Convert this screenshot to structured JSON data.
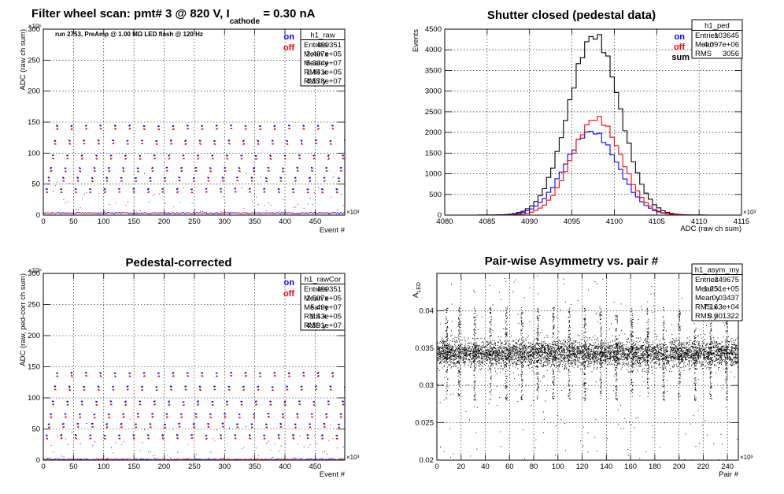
{
  "chart_data": [
    {
      "id": "raw",
      "type": "scatter",
      "title_parts": {
        "pre": "Filter wheel scan: pmt#   3 @   820 V, I",
        "sub": "cathode",
        "post": "     = 0.30 nA"
      },
      "subtitle": "run 2753, PreAmp @ 1.00 MΩ  LED flash @  120 Hz",
      "xlabel": "Event #",
      "ylabel": "ADC (raw ch sum)",
      "x_exponent": "×10³",
      "y_exponent": "×10⁶",
      "xlim": [
        0,
        499
      ],
      "ylim": [
        0,
        300
      ],
      "xticks": [
        0,
        50,
        100,
        150,
        200,
        250,
        300,
        350,
        400,
        450
      ],
      "yticks": [
        0,
        50,
        100,
        150,
        200,
        250,
        300
      ],
      "grid": true,
      "legend_position": "top-right",
      "series": [
        {
          "name": "on",
          "color": "#0000ff"
        },
        {
          "name": "off",
          "color": "#ff0000"
        }
      ],
      "cycle_period": 24,
      "step_levels": [
        4,
        40,
        58,
        74,
        94,
        118,
        142
      ],
      "stats": {
        "name": "h1_raw",
        "rows": [
          [
            "Entries",
            "499351"
          ],
          [
            "Mean x",
            "2.497e+05"
          ],
          [
            "Mean y",
            "5.334e+07"
          ],
          [
            "RMS x",
            "1.441e+05"
          ],
          [
            "RMS y",
            "4.578e+07"
          ]
        ]
      }
    },
    {
      "id": "ped",
      "type": "line",
      "title": "Shutter closed (pedestal data)",
      "xlabel": "ADC (raw ch sum)",
      "ylabel": "Events",
      "x_exponent": "×10³",
      "xlim": [
        4080,
        4115
      ],
      "ylim": [
        0,
        4500
      ],
      "xticks": [
        4080,
        4085,
        4090,
        4095,
        4100,
        4105,
        4110,
        4115
      ],
      "yticks": [
        0,
        500,
        1000,
        1500,
        2000,
        2500,
        3000,
        3500,
        4000,
        4500
      ],
      "grid": true,
      "legend_position": "top-right",
      "series": [
        {
          "name": "on",
          "color": "#0000ff",
          "mean": 4097.3,
          "sigma": 3.1,
          "peak": 2020
        },
        {
          "name": "off",
          "color": "#ff0000",
          "mean": 4097.9,
          "sigma": 2.9,
          "peak": 2340
        },
        {
          "name": "sum",
          "color": "#000000"
        }
      ],
      "stats": {
        "name": "h1_ped",
        "rows": [
          [
            "Entries",
            "103645"
          ],
          [
            "Mean",
            "4.097e+06"
          ],
          [
            "RMS",
            "3056"
          ]
        ]
      }
    },
    {
      "id": "rawCor",
      "type": "scatter",
      "title": "Pedestal-corrected",
      "xlabel": "Event #",
      "ylabel": "ADC (raw, ped-corr ch sum)",
      "x_exponent": "×10³",
      "y_exponent": "×10⁶",
      "xlim": [
        0,
        499
      ],
      "ylim": [
        0,
        300
      ],
      "xticks": [
        0,
        50,
        100,
        150,
        200,
        250,
        300,
        350,
        400,
        450
      ],
      "yticks": [
        0,
        50,
        100,
        150,
        200,
        250,
        300
      ],
      "grid": true,
      "legend_position": "top-right",
      "series": [
        {
          "name": "on",
          "color": "#0000ff"
        },
        {
          "name": "off",
          "color": "#ff0000"
        }
      ],
      "cycle_period": 24,
      "step_levels": [
        2,
        38,
        56,
        72,
        92,
        116,
        138
      ],
      "stats": {
        "name": "h1_rawCor",
        "rows": [
          [
            "Entries",
            "499351"
          ],
          [
            "Mean x",
            "2.507e+05"
          ],
          [
            "Mean y",
            "5.49e+07"
          ],
          [
            "RMS x",
            "1.43e+05"
          ],
          [
            "RMS y",
            "4.501e+07"
          ]
        ]
      }
    },
    {
      "id": "asym",
      "type": "scatter",
      "title": "Pair-wise Asymmetry vs. pair #",
      "xlabel": "Pair #",
      "ylabel_parts": {
        "main": "A",
        "sub": "LED"
      },
      "x_exponent": "×10³",
      "xlim": [
        0,
        249
      ],
      "ylim": [
        0.02,
        0.045
      ],
      "xticks": [
        0,
        20,
        40,
        60,
        80,
        100,
        120,
        140,
        160,
        180,
        200,
        220,
        240
      ],
      "yticks": [
        0.02,
        0.025,
        0.03,
        0.035,
        0.04
      ],
      "grid": true,
      "band_center": 0.0343,
      "band_halfwidth": 0.0016,
      "spike_positions": [
        8,
        18,
        31,
        44,
        57,
        70,
        83,
        96,
        109,
        122,
        135,
        148,
        161,
        174,
        187,
        200,
        213,
        226,
        239
      ],
      "stats": {
        "name": "h1_asym_my",
        "rows": [
          [
            "Entries",
            "249675"
          ],
          [
            "Mean x",
            "1.251e+05"
          ],
          [
            "Mean y",
            "0.03437"
          ],
          [
            "RMS x",
            "7.163e+04"
          ],
          [
            "RMS y",
            "0.001322"
          ]
        ]
      }
    }
  ]
}
